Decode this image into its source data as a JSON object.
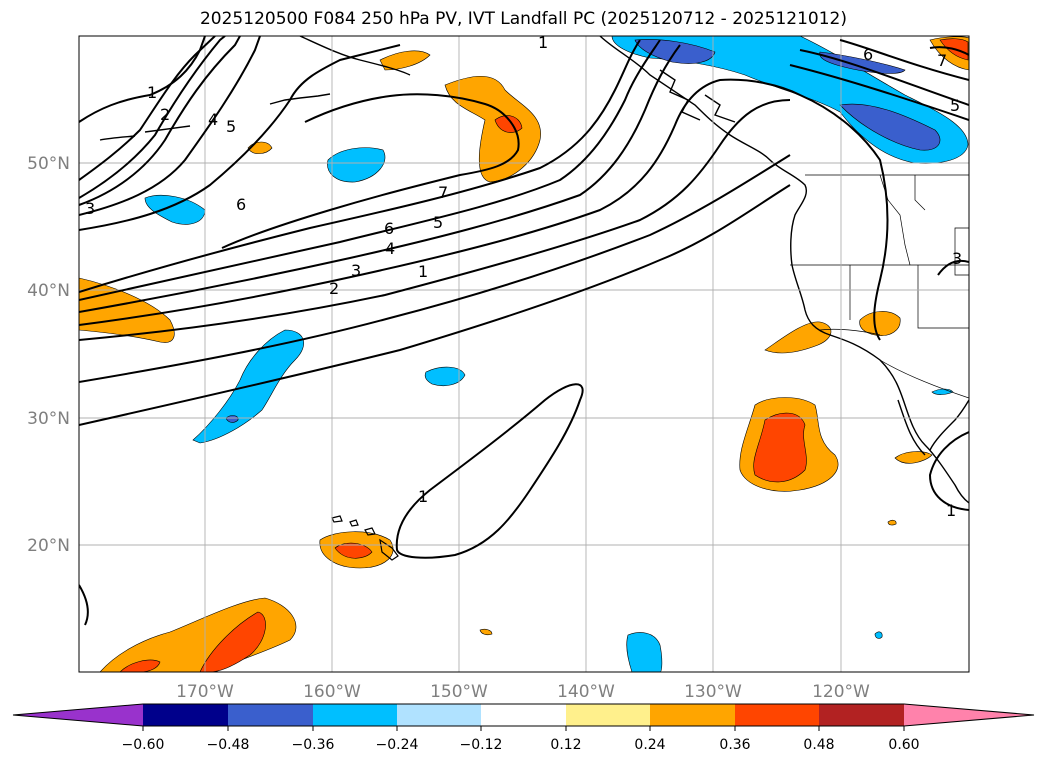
{
  "title": "2025120500 F084 250 hPa PV, IVT Landfall PC (2025120712 - 2025121012)",
  "map": {
    "lat_labels": [
      "50°N",
      "40°N",
      "30°N",
      "20°N"
    ],
    "lon_labels": [
      "170°W",
      "160°W",
      "150°W",
      "140°W",
      "130°W",
      "120°W"
    ],
    "contour_labels": [
      "1",
      "2",
      "4",
      "5",
      "3",
      "6",
      "7",
      "6",
      "5",
      "4",
      "3",
      "2",
      "1",
      "1",
      "6",
      "7",
      "5",
      "3",
      "1",
      "1"
    ]
  },
  "colorbar": {
    "ticks": [
      "−0.60",
      "−0.48",
      "−0.36",
      "−0.24",
      "−0.12",
      "0.12",
      "0.24",
      "0.36",
      "0.48",
      "0.60"
    ],
    "colors": [
      "#9932cc",
      "#00008b",
      "#3a5fcd",
      "#00bfff",
      "#b0e2ff",
      "#ffffff",
      "#fff08c",
      "#ffa500",
      "#ff4500",
      "#b22222",
      "#ff82ab"
    ]
  }
}
